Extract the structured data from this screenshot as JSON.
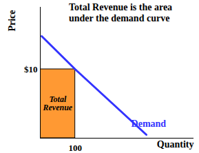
{
  "chart_data": {
    "type": "line",
    "title": "Total Revenue is the area under the demand curve",
    "xlabel": "Quantity",
    "ylabel": "Price",
    "x": [
      4,
      100,
      304
    ],
    "series": [
      {
        "name": "Demand",
        "color": "#3333ff",
        "values": [
          14.8,
          10,
          0.5
        ]
      }
    ],
    "revenue_area": {
      "label": "Total Revenue",
      "x": [
        0,
        100
      ],
      "y": [
        0,
        10
      ],
      "color": "#ff9933"
    },
    "xlim": [
      0,
      440
    ],
    "ylim": [
      0,
      19
    ],
    "xticks": [
      100
    ],
    "yticks": [
      {
        "value": 10,
        "label": "$10"
      }
    ],
    "grid": false
  }
}
